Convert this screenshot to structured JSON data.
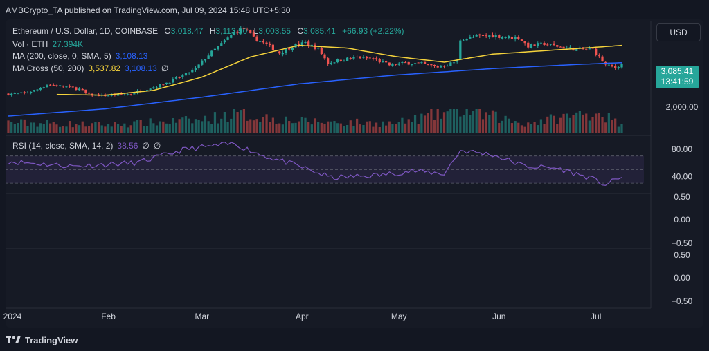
{
  "header": {
    "publisher": "AMBCrypto_TA published on TradingView.com, Jul 09, 2024 15:48 UTC+5:30"
  },
  "legend": {
    "symbol": "Ethereum / U.S. Dollar, 1D, COINBASE",
    "open_label": "O",
    "open": "3,018.47",
    "high_label": "H",
    "high": "3,113.50",
    "low_label": "L",
    "low": "3,003.55",
    "close_label": "C",
    "close": "3,085.41",
    "change": "+66.93 (+2.22%)",
    "vol_label": "Vol · ETH",
    "vol": "27.394K",
    "ma_label": "MA (200, close, 0, SMA, 5)",
    "ma_value": "3,108.13",
    "macross_label": "MA Cross (50, 200)",
    "macross_fast": "3,537.82",
    "macross_slow": "3,108.13",
    "macross_extra": "∅",
    "rsi_label": "RSI (14, close, SMA, 14, 2)",
    "rsi_value": "38.56",
    "rsi_extra1": "∅",
    "rsi_extra2": "∅"
  },
  "controls": {
    "currency": "USD"
  },
  "price_badge": {
    "price": "3,085.41",
    "countdown": "13:41:59"
  },
  "footer": {
    "brand": "TradingView"
  },
  "colors": {
    "up": "#26a69a",
    "down": "#ef5350",
    "ma200": "#2962ff",
    "ma50": "#f5d33c",
    "rsi": "#7e57c2",
    "background": "#131722"
  },
  "chart_data": {
    "type": "candlestick",
    "price_axis": {
      "ticks": [
        2000
      ],
      "tick_labels": [
        "2,000.00"
      ],
      "range": [
        1300,
        4150
      ]
    },
    "rsi_axis": {
      "tick_labels": [
        "80.00",
        "40.00"
      ],
      "ticks": [
        80,
        40
      ],
      "band": [
        30,
        70
      ],
      "mid": 50
    },
    "empty_pane_1": {
      "tick_labels": [
        "0.50",
        "0.00",
        "−0.50"
      ]
    },
    "empty_pane_2": {
      "tick_labels": [
        "0.50",
        "0.00",
        "−0.50"
      ]
    },
    "x_axis_labels": [
      "2024",
      "Feb",
      "Mar",
      "Apr",
      "May",
      "Jun",
      "Jul"
    ],
    "x_axis_label_days": [
      0,
      31,
      60,
      91,
      121,
      152,
      182
    ],
    "days": 191,
    "anchors": [
      [
        0,
        2330
      ],
      [
        5,
        2350
      ],
      [
        9,
        2440
      ],
      [
        12,
        2560
      ],
      [
        17,
        2520
      ],
      [
        22,
        2450
      ],
      [
        25,
        2310
      ],
      [
        30,
        2290
      ],
      [
        38,
        2330
      ],
      [
        41,
        2420
      ],
      [
        46,
        2520
      ],
      [
        50,
        2640
      ],
      [
        54,
        2780
      ],
      [
        58,
        2960
      ],
      [
        62,
        3300
      ],
      [
        66,
        3570
      ],
      [
        70,
        3860
      ],
      [
        73,
        3950
      ],
      [
        76,
        3720
      ],
      [
        80,
        3560
      ],
      [
        84,
        3350
      ],
      [
        88,
        3520
      ],
      [
        92,
        3600
      ],
      [
        96,
        3450
      ],
      [
        99,
        3100
      ],
      [
        103,
        3180
      ],
      [
        108,
        3240
      ],
      [
        113,
        3200
      ],
      [
        118,
        3050
      ],
      [
        123,
        3100
      ],
      [
        128,
        3080
      ],
      [
        133,
        3000
      ],
      [
        136,
        3060
      ],
      [
        139,
        3150
      ],
      [
        140,
        3680
      ],
      [
        145,
        3760
      ],
      [
        150,
        3780
      ],
      [
        155,
        3740
      ],
      [
        158,
        3720
      ],
      [
        161,
        3520
      ],
      [
        166,
        3580
      ],
      [
        171,
        3500
      ],
      [
        175,
        3450
      ],
      [
        181,
        3440
      ],
      [
        185,
        3050
      ],
      [
        188,
        2980
      ],
      [
        190,
        3085
      ]
    ],
    "ma200": [
      [
        0,
        1780
      ],
      [
        30,
        1960
      ],
      [
        60,
        2250
      ],
      [
        90,
        2580
      ],
      [
        120,
        2800
      ],
      [
        150,
        2960
      ],
      [
        175,
        3060
      ],
      [
        190,
        3108
      ]
    ],
    "ma50": [
      [
        15,
        2320
      ],
      [
        30,
        2300
      ],
      [
        45,
        2420
      ],
      [
        60,
        2750
      ],
      [
        75,
        3250
      ],
      [
        90,
        3540
      ],
      [
        105,
        3470
      ],
      [
        120,
        3260
      ],
      [
        135,
        3120
      ],
      [
        150,
        3320
      ],
      [
        165,
        3400
      ],
      [
        180,
        3480
      ],
      [
        190,
        3538
      ]
    ],
    "volume_anchors": [
      [
        0,
        0.45
      ],
      [
        30,
        0.35
      ],
      [
        60,
        0.55
      ],
      [
        70,
        0.8
      ],
      [
        90,
        0.5
      ],
      [
        120,
        0.4
      ],
      [
        140,
        1.0
      ],
      [
        160,
        0.4
      ],
      [
        183,
        0.9
      ],
      [
        190,
        0.3
      ]
    ],
    "rsi_anchors": [
      [
        0,
        62
      ],
      [
        20,
        55
      ],
      [
        40,
        60
      ],
      [
        55,
        80
      ],
      [
        70,
        88
      ],
      [
        78,
        72
      ],
      [
        90,
        55
      ],
      [
        100,
        38
      ],
      [
        115,
        42
      ],
      [
        125,
        48
      ],
      [
        135,
        44
      ],
      [
        140,
        78
      ],
      [
        150,
        72
      ],
      [
        160,
        55
      ],
      [
        170,
        52
      ],
      [
        180,
        38
      ],
      [
        185,
        28
      ],
      [
        190,
        38.56
      ]
    ]
  }
}
